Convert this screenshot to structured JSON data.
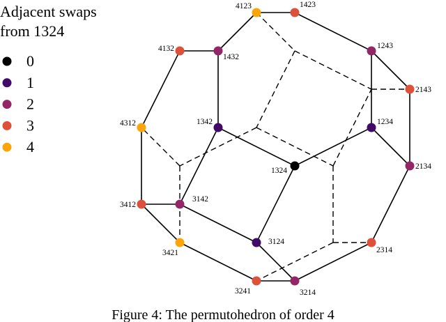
{
  "legend": {
    "title": [
      "Adjacent swaps",
      "from 1324"
    ],
    "items": [
      {
        "label": "0",
        "color": "#000000"
      },
      {
        "label": "1",
        "color": "#420a68"
      },
      {
        "label": "2",
        "color": "#932667"
      },
      {
        "label": "3",
        "color": "#dd513a"
      },
      {
        "label": "4",
        "color": "#fca50a"
      }
    ]
  },
  "nodes": [
    {
      "label": "4123",
      "color": "#fca50a"
    },
    {
      "label": "1423",
      "color": "#dd513a"
    },
    {
      "label": "4132",
      "color": "#dd513a"
    },
    {
      "label": "1432",
      "color": "#932667"
    },
    {
      "label": "1243",
      "color": "#932667"
    },
    {
      "label": "2143",
      "color": "#dd513a"
    },
    {
      "label": "4312",
      "color": "#fca50a"
    },
    {
      "label": "1342",
      "color": "#420a68"
    },
    {
      "label": "1234",
      "color": "#420a68"
    },
    {
      "label": "1324",
      "color": "#000000"
    },
    {
      "label": "2134",
      "color": "#932667"
    },
    {
      "label": "3412",
      "color": "#dd513a"
    },
    {
      "label": "3142",
      "color": "#932667"
    },
    {
      "label": "3124",
      "color": "#420a68"
    },
    {
      "label": "3421",
      "color": "#fca50a"
    },
    {
      "label": "2314",
      "color": "#dd513a"
    },
    {
      "label": "3241",
      "color": "#dd513a"
    },
    {
      "label": "3214",
      "color": "#932667"
    }
  ],
  "caption": "Figure 4: The permutohedron of order 4"
}
